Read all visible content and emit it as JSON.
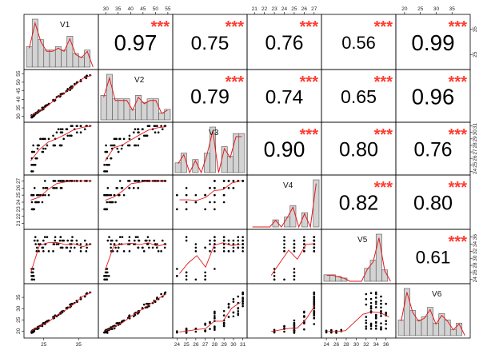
{
  "chart_data": {
    "type": "scatter-matrix",
    "variables": [
      "V1",
      "V2",
      "V3",
      "V4",
      "V5",
      "V6"
    ],
    "colors": {
      "points": "#000000",
      "smooth": "#e41a1c",
      "hist_fill": "#d3d3d3",
      "stars": "#ff3b30"
    },
    "correlations": [
      {
        "pair": [
          "V1",
          "V2"
        ],
        "label": "0.97",
        "stars": "***"
      },
      {
        "pair": [
          "V1",
          "V3"
        ],
        "label": "0.75",
        "stars": "***"
      },
      {
        "pair": [
          "V1",
          "V4"
        ],
        "label": "0.76",
        "stars": "***"
      },
      {
        "pair": [
          "V1",
          "V5"
        ],
        "label": "0.56",
        "stars": "***"
      },
      {
        "pair": [
          "V1",
          "V6"
        ],
        "label": "0.99",
        "stars": "***"
      },
      {
        "pair": [
          "V2",
          "V3"
        ],
        "label": "0.79",
        "stars": "***"
      },
      {
        "pair": [
          "V2",
          "V4"
        ],
        "label": "0.74",
        "stars": "***"
      },
      {
        "pair": [
          "V2",
          "V5"
        ],
        "label": "0.65",
        "stars": "***"
      },
      {
        "pair": [
          "V2",
          "V6"
        ],
        "label": "0.96",
        "stars": "***"
      },
      {
        "pair": [
          "V3",
          "V4"
        ],
        "label": "0.90",
        "stars": "***"
      },
      {
        "pair": [
          "V3",
          "V5"
        ],
        "label": "0.80",
        "stars": "***"
      },
      {
        "pair": [
          "V3",
          "V6"
        ],
        "label": "0.76",
        "stars": "***"
      },
      {
        "pair": [
          "V4",
          "V5"
        ],
        "label": "0.82",
        "stars": "***"
      },
      {
        "pair": [
          "V4",
          "V6"
        ],
        "label": "0.80",
        "stars": "***"
      },
      {
        "pair": [
          "V5",
          "V6"
        ],
        "label": "0.61",
        "stars": "***"
      }
    ],
    "axes": {
      "V1": {
        "range": [
          20,
          40
        ],
        "ticks": [
          "25",
          "35"
        ]
      },
      "V2": {
        "range": [
          28,
          56
        ],
        "ticks": [
          "30",
          "35",
          "40",
          "45",
          "50",
          "55"
        ]
      },
      "V3": {
        "range": [
          23.8,
          31.2
        ],
        "ticks": [
          "24",
          "25",
          "26",
          "27",
          "28",
          "29",
          "30",
          "31"
        ]
      },
      "V4": {
        "range": [
          20.5,
          27.5
        ],
        "ticks": [
          "21",
          "22",
          "23",
          "24",
          "25",
          "26",
          "27"
        ]
      },
      "V5": {
        "range": [
          23.5,
          37.5
        ],
        "ticks": [
          "24",
          "26",
          "28",
          "30",
          "32",
          "34",
          "36"
        ]
      },
      "V6": {
        "range": [
          18,
          40
        ],
        "ticks": [
          "20",
          "25",
          "30",
          "35"
        ]
      }
    }
  }
}
